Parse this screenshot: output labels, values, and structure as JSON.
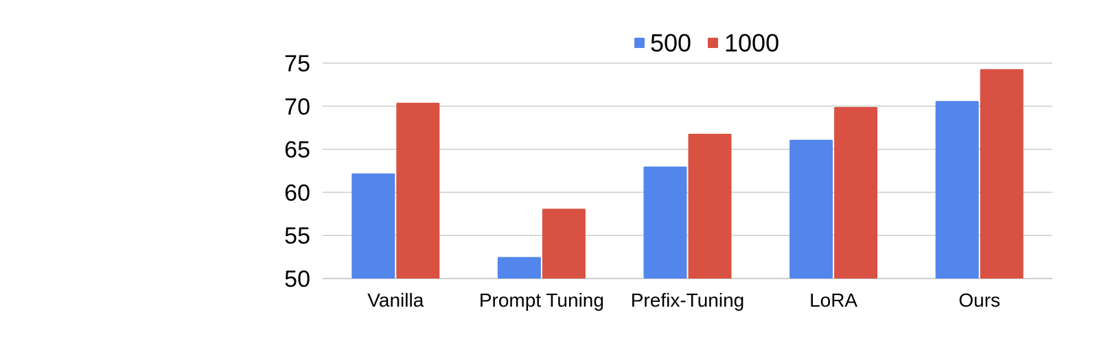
{
  "chart_data": {
    "type": "bar",
    "categories": [
      "Vanilla",
      "Prompt Tuning",
      "Prefix-Tuning",
      "LoRA",
      "Ours"
    ],
    "series": [
      {
        "name": "500",
        "color": "#5286EC",
        "values": [
          62.2,
          52.5,
          63.0,
          66.1,
          70.6
        ]
      },
      {
        "name": "1000",
        "color": "#D95142",
        "values": [
          70.4,
          58.1,
          66.8,
          69.9,
          74.3
        ]
      }
    ],
    "title": "",
    "xlabel": "",
    "ylabel": "",
    "ylim": [
      50,
      75
    ],
    "yticks": [
      "50",
      "55",
      "60",
      "65",
      "70",
      "75"
    ],
    "grid": true,
    "legend_position": "top"
  }
}
